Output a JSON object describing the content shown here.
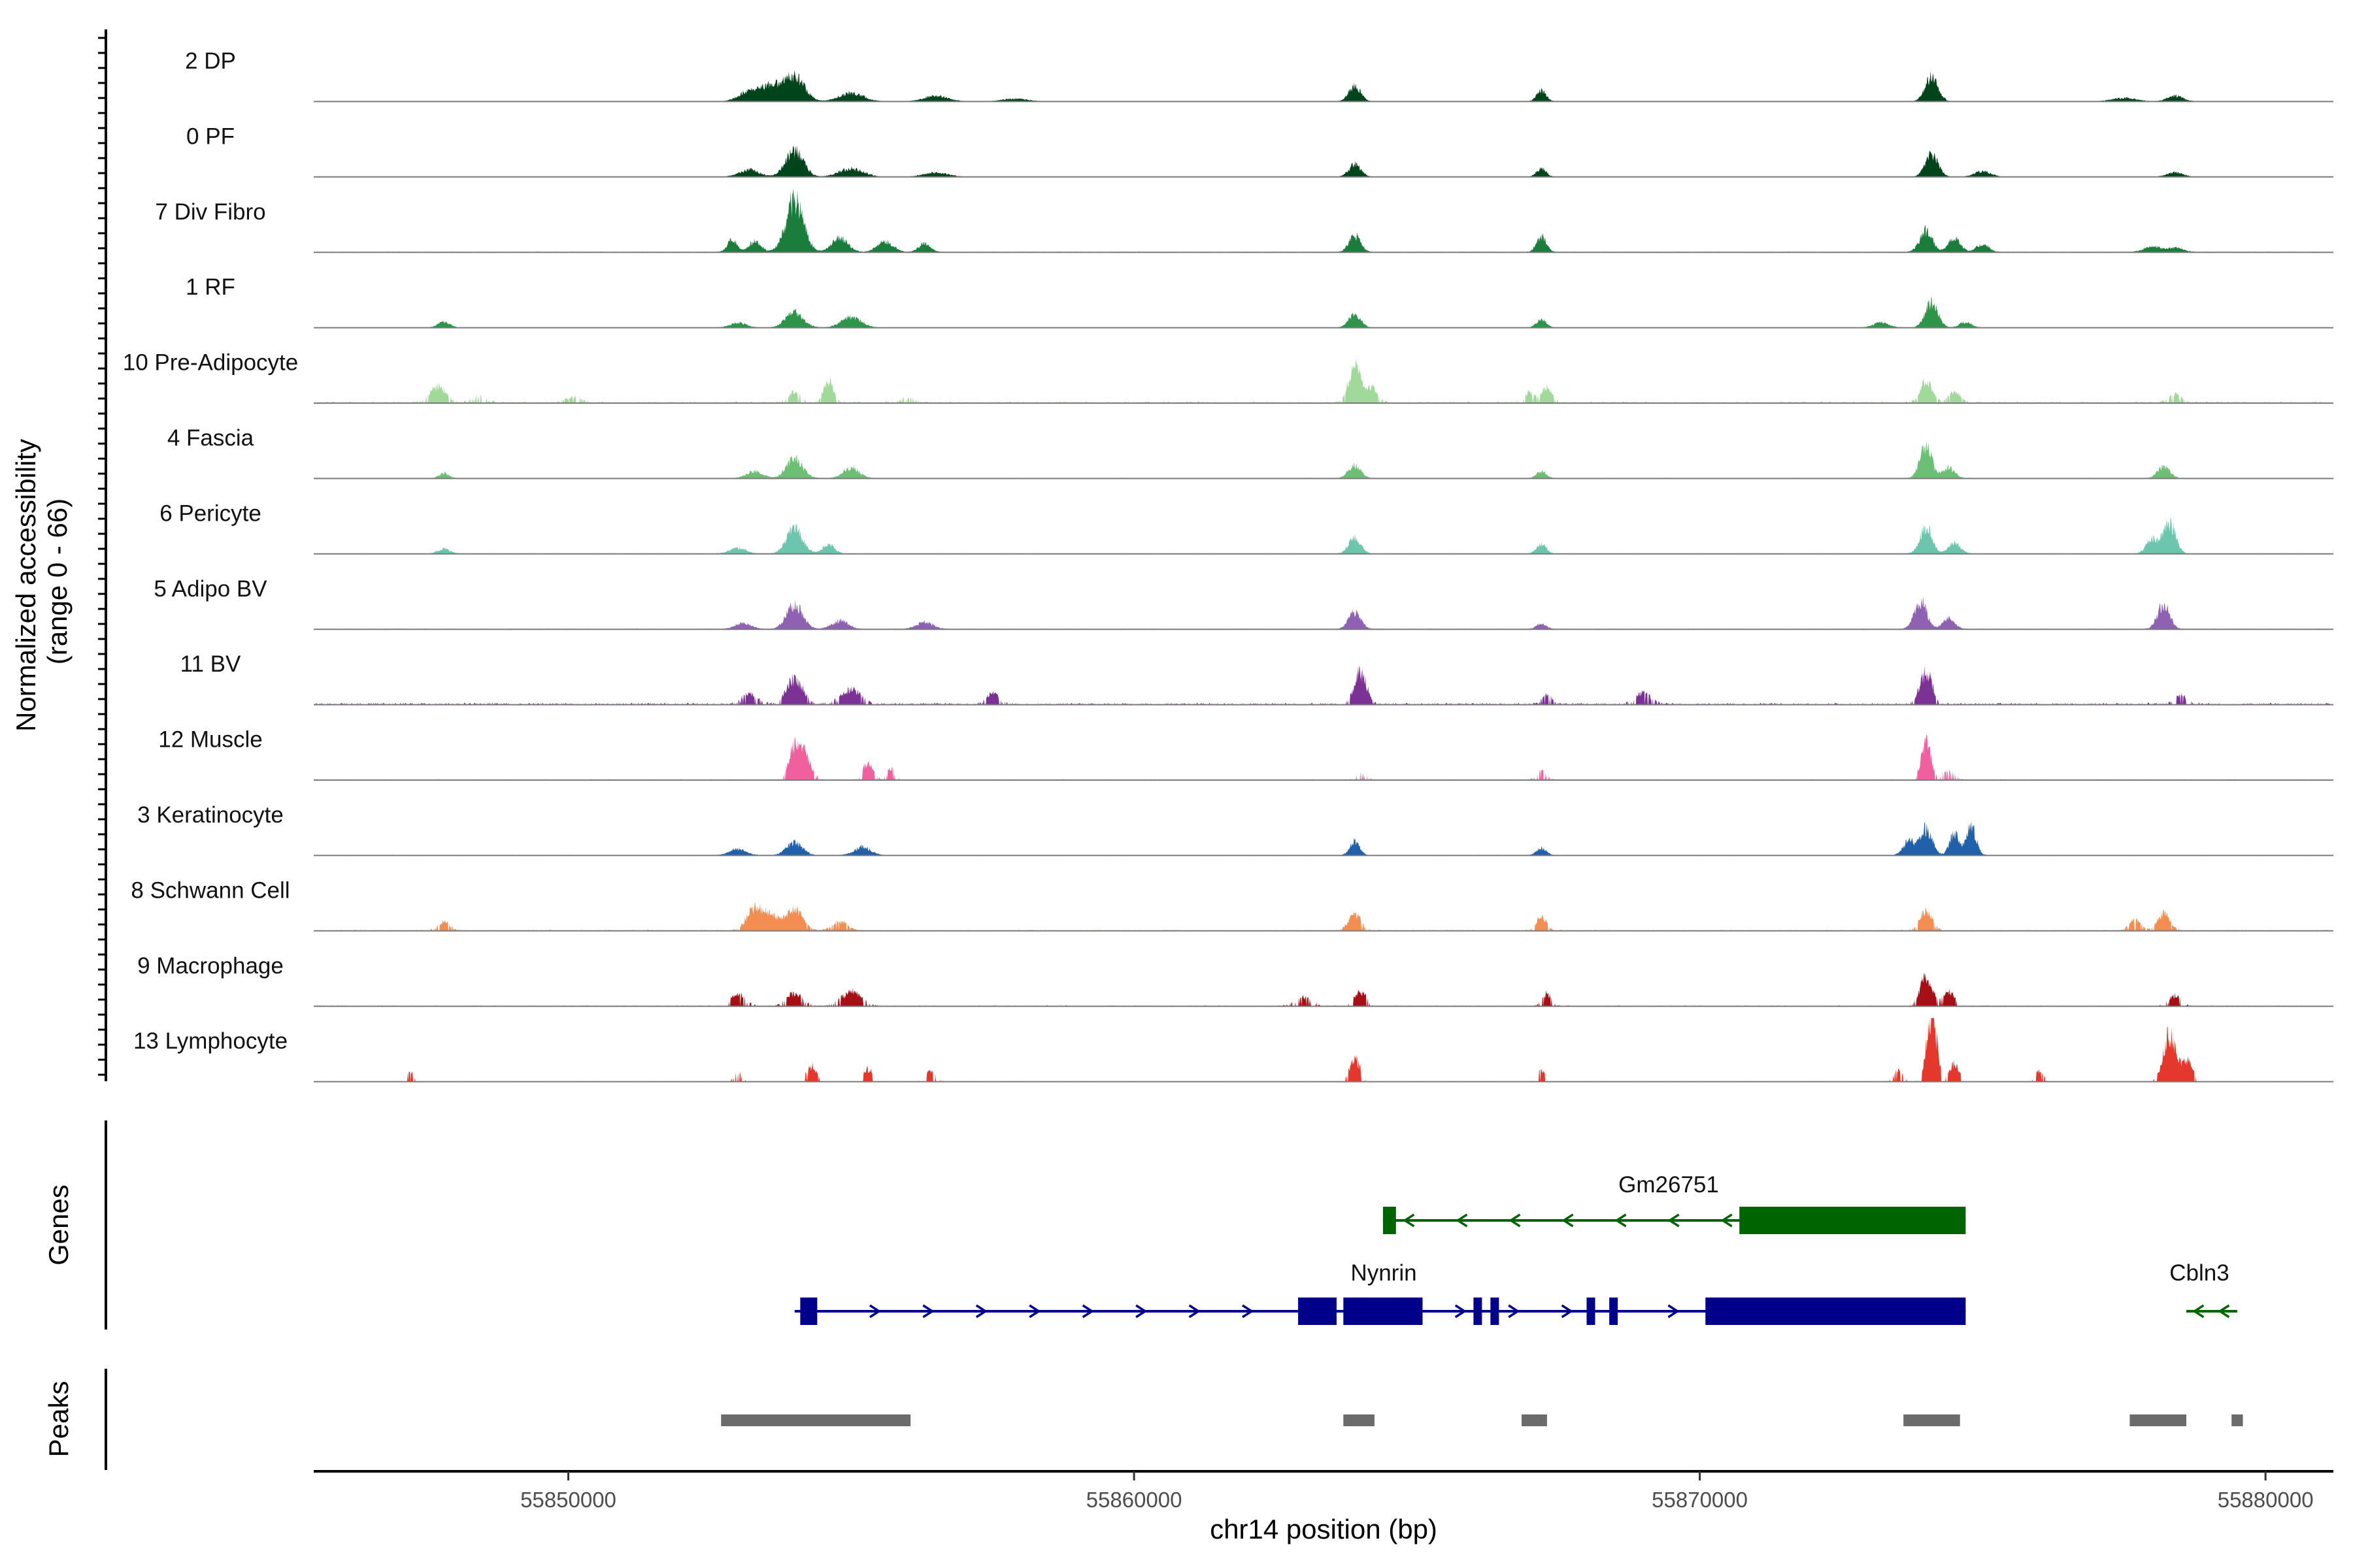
{
  "chart_data": {
    "type": "area",
    "title": "",
    "ylabel_line1": "Normalized accessibility",
    "ylabel_line2": "(range 0 - 66)",
    "y_range": [
      0,
      66
    ],
    "xlabel": "chr14 position (bp)",
    "xlim": [
      55845500,
      55881200
    ],
    "x_ticks": [
      55850000,
      55860000,
      55870000,
      55880000
    ],
    "x_tick_labels": [
      "55850000",
      "55860000",
      "55870000",
      "55880000"
    ],
    "genes_label": "Genes",
    "peaks_label": "Peaks",
    "tracks": [
      {
        "name": "2 DP",
        "color": "#00441b",
        "noise": 0.05,
        "sparse": 0,
        "peaks": [
          [
            55853200,
            1.5,
            250
          ],
          [
            55853600,
            2.2,
            250
          ],
          [
            55854000,
            3.5,
            250
          ],
          [
            55855000,
            1.2,
            300
          ],
          [
            55856500,
            0.8,
            300
          ],
          [
            55857900,
            0.4,
            300
          ],
          [
            55863900,
            2.2,
            150
          ],
          [
            55867200,
            1.5,
            120
          ],
          [
            55874100,
            3.6,
            160
          ],
          [
            55877500,
            0.5,
            300
          ],
          [
            55878400,
            0.8,
            200
          ]
        ]
      },
      {
        "name": "0 PF",
        "color": "#00441b",
        "noise": 0.05,
        "sparse": 0,
        "peaks": [
          [
            55853200,
            1.0,
            250
          ],
          [
            55854000,
            3.8,
            220
          ],
          [
            55855000,
            1.2,
            300
          ],
          [
            55856500,
            0.6,
            300
          ],
          [
            55863900,
            1.8,
            150
          ],
          [
            55867200,
            1.2,
            120
          ],
          [
            55874100,
            3.2,
            160
          ],
          [
            55875000,
            0.8,
            200
          ],
          [
            55878400,
            0.6,
            200
          ]
        ]
      },
      {
        "name": "7 Div Fibro",
        "color": "#1a7d3b",
        "noise": 0.1,
        "sparse": 0,
        "peaks": [
          [
            55852900,
            1.8,
            120
          ],
          [
            55853300,
            1.5,
            150
          ],
          [
            55854000,
            7.5,
            220
          ],
          [
            55854800,
            2.0,
            200
          ],
          [
            55855600,
            1.5,
            200
          ],
          [
            55856300,
            1.2,
            150
          ],
          [
            55863900,
            2.5,
            140
          ],
          [
            55867200,
            2.2,
            120
          ],
          [
            55874000,
            3.0,
            160
          ],
          [
            55874500,
            2.0,
            150
          ],
          [
            55875000,
            1.2,
            150
          ],
          [
            55878000,
            0.8,
            200
          ],
          [
            55878400,
            0.6,
            200
          ]
        ]
      },
      {
        "name": "1 RF",
        "color": "#2e9449",
        "noise": 0.05,
        "sparse": 0,
        "peaks": [
          [
            55847800,
            0.8,
            150
          ],
          [
            55853000,
            0.7,
            200
          ],
          [
            55854000,
            2.2,
            220
          ],
          [
            55855000,
            1.5,
            250
          ],
          [
            55863900,
            1.8,
            150
          ],
          [
            55867200,
            1.2,
            120
          ],
          [
            55873200,
            0.7,
            200
          ],
          [
            55874100,
            3.5,
            160
          ],
          [
            55874700,
            0.8,
            150
          ]
        ]
      },
      {
        "name": "10 Pre-Adipocyte",
        "color": "#a1d99b",
        "noise": 0.25,
        "sparse": 0.5,
        "peaks": [
          [
            55847700,
            2.2,
            200
          ],
          [
            55848400,
            0.8,
            200
          ],
          [
            55850100,
            0.8,
            200
          ],
          [
            55854000,
            1.5,
            150
          ],
          [
            55854600,
            3.0,
            120
          ],
          [
            55856000,
            0.8,
            150
          ],
          [
            55863900,
            5.0,
            150
          ],
          [
            55864200,
            2.0,
            150
          ],
          [
            55867000,
            1.5,
            120
          ],
          [
            55867300,
            2.2,
            120
          ],
          [
            55874000,
            3.0,
            150
          ],
          [
            55874500,
            1.5,
            150
          ],
          [
            55878400,
            1.2,
            150
          ]
        ]
      },
      {
        "name": "4 Fascia",
        "color": "#6cbf74",
        "noise": 0.1,
        "sparse": 0,
        "peaks": [
          [
            55847800,
            0.7,
            120
          ],
          [
            55853300,
            1.0,
            200
          ],
          [
            55854000,
            2.8,
            200
          ],
          [
            55855000,
            1.5,
            200
          ],
          [
            55863900,
            2.0,
            150
          ],
          [
            55867200,
            1.0,
            120
          ],
          [
            55874000,
            4.5,
            150
          ],
          [
            55874400,
            1.5,
            150
          ],
          [
            55878200,
            1.8,
            150
          ]
        ]
      },
      {
        "name": "6 Pericyte",
        "color": "#6dc5ae",
        "noise": 0.1,
        "sparse": 0,
        "peaks": [
          [
            55847800,
            0.7,
            150
          ],
          [
            55853000,
            0.8,
            200
          ],
          [
            55854000,
            3.6,
            200
          ],
          [
            55854600,
            1.2,
            150
          ],
          [
            55863900,
            2.2,
            150
          ],
          [
            55867200,
            1.3,
            120
          ],
          [
            55874000,
            4.0,
            150
          ],
          [
            55874500,
            1.5,
            150
          ],
          [
            55878000,
            2.0,
            150
          ],
          [
            55878300,
            4.5,
            150
          ]
        ]
      },
      {
        "name": "5 Adipo BV",
        "color": "#8f61b3",
        "noise": 0.1,
        "sparse": 0,
        "peaks": [
          [
            55853100,
            0.8,
            200
          ],
          [
            55854000,
            3.5,
            200
          ],
          [
            55854800,
            1.2,
            200
          ],
          [
            55856300,
            1.0,
            200
          ],
          [
            55863900,
            2.5,
            150
          ],
          [
            55867200,
            0.8,
            120
          ],
          [
            55873900,
            4.2,
            150
          ],
          [
            55874400,
            1.5,
            150
          ],
          [
            55878200,
            3.6,
            150
          ]
        ]
      },
      {
        "name": "11 BV",
        "color": "#7b3294",
        "noise": 0.3,
        "sparse": 0.55,
        "peaks": [
          [
            55853200,
            1.5,
            200
          ],
          [
            55854000,
            3.5,
            200
          ],
          [
            55855000,
            2.0,
            250
          ],
          [
            55857500,
            1.5,
            150
          ],
          [
            55864000,
            4.5,
            150
          ],
          [
            55867300,
            1.3,
            120
          ],
          [
            55869000,
            1.5,
            200
          ],
          [
            55874000,
            4.5,
            150
          ],
          [
            55878500,
            1.2,
            150
          ]
        ]
      },
      {
        "name": "12 Muscle",
        "color": "#f0609f",
        "noise": 0.15,
        "sparse": 0.72,
        "peaks": [
          [
            55854000,
            4.5,
            150
          ],
          [
            55854200,
            3.0,
            150
          ],
          [
            55855300,
            2.5,
            120
          ],
          [
            55855700,
            1.5,
            120
          ],
          [
            55864000,
            0.9,
            150
          ],
          [
            55867200,
            1.2,
            120
          ],
          [
            55874000,
            5.5,
            120
          ],
          [
            55874400,
            1.2,
            150
          ]
        ]
      },
      {
        "name": "3 Keratinocyte",
        "color": "#2161ac",
        "noise": 0.1,
        "sparse": 0,
        "peaks": [
          [
            55853000,
            0.9,
            200
          ],
          [
            55854000,
            1.8,
            200
          ],
          [
            55855200,
            1.2,
            200
          ],
          [
            55863900,
            2.0,
            120
          ],
          [
            55867200,
            1.0,
            120
          ],
          [
            55873700,
            2.0,
            150
          ],
          [
            55874000,
            3.8,
            150
          ],
          [
            55874500,
            3.0,
            120
          ],
          [
            55874800,
            4.2,
            120
          ]
        ]
      },
      {
        "name": "8 Schwann Cell",
        "color": "#f48d52",
        "noise": 0.15,
        "sparse": 0.35,
        "peaks": [
          [
            55847800,
            1.2,
            150
          ],
          [
            55853300,
            3.2,
            200
          ],
          [
            55853600,
            2.0,
            200
          ],
          [
            55854000,
            3.2,
            200
          ],
          [
            55854800,
            1.2,
            200
          ],
          [
            55863900,
            2.5,
            150
          ],
          [
            55867200,
            2.0,
            120
          ],
          [
            55874000,
            3.0,
            150
          ],
          [
            55877700,
            1.5,
            150
          ],
          [
            55878200,
            2.5,
            150
          ]
        ]
      },
      {
        "name": "9 Macrophage",
        "color": "#a50f15",
        "noise": 0.15,
        "sparse": 0.75,
        "peaks": [
          [
            55853000,
            1.6,
            200
          ],
          [
            55854000,
            1.8,
            200
          ],
          [
            55855000,
            2.0,
            250
          ],
          [
            55863000,
            1.2,
            200
          ],
          [
            55864000,
            2.0,
            150
          ],
          [
            55867300,
            1.8,
            120
          ],
          [
            55874000,
            4.0,
            150
          ],
          [
            55874400,
            2.0,
            150
          ],
          [
            55878400,
            1.5,
            150
          ]
        ]
      },
      {
        "name": "13 Lymphocyte",
        "color": "#e4382c",
        "noise": 0.1,
        "sparse": 0.85,
        "peaks": [
          [
            55847200,
            1.5,
            80
          ],
          [
            55853000,
            1.2,
            100
          ],
          [
            55854300,
            2.2,
            120
          ],
          [
            55855300,
            1.8,
            120
          ],
          [
            55856400,
            1.5,
            120
          ],
          [
            55863900,
            3.5,
            120
          ],
          [
            55867200,
            1.5,
            100
          ],
          [
            55873500,
            1.5,
            120
          ],
          [
            55874100,
            10.0,
            120
          ],
          [
            55874500,
            2.5,
            120
          ],
          [
            55876000,
            1.5,
            100
          ],
          [
            55878300,
            6.5,
            150
          ],
          [
            55878600,
            3.0,
            150
          ]
        ]
      }
    ],
    "genes": [
      {
        "name": "Gm26751",
        "strand": "-",
        "color": "#006400",
        "start": 55864400,
        "end": 55874700,
        "exons": [
          [
            55864400,
            55864630
          ],
          [
            55870700,
            55874700
          ]
        ]
      },
      {
        "name": "Nynrin",
        "strand": "+",
        "color": "#00008b",
        "start": 55854000,
        "end": 55874700,
        "exons": [
          [
            55854100,
            55854400
          ],
          [
            55862900,
            55863580
          ],
          [
            55863700,
            55865100
          ],
          [
            55866000,
            55866150
          ],
          [
            55866300,
            55866450
          ],
          [
            55868000,
            55868150
          ],
          [
            55868400,
            55868550
          ],
          [
            55870100,
            55874700
          ]
        ]
      },
      {
        "name": "Cbln3",
        "strand": "-",
        "color": "#006400",
        "start": 55878600,
        "end": 55879500,
        "exons": []
      }
    ],
    "peak_regions": [
      [
        55852700,
        55856050
      ],
      [
        55863700,
        55864250
      ],
      [
        55866850,
        55867300
      ],
      [
        55873600,
        55874600
      ],
      [
        55877600,
        55878600
      ],
      [
        55879400,
        55879600
      ]
    ]
  }
}
